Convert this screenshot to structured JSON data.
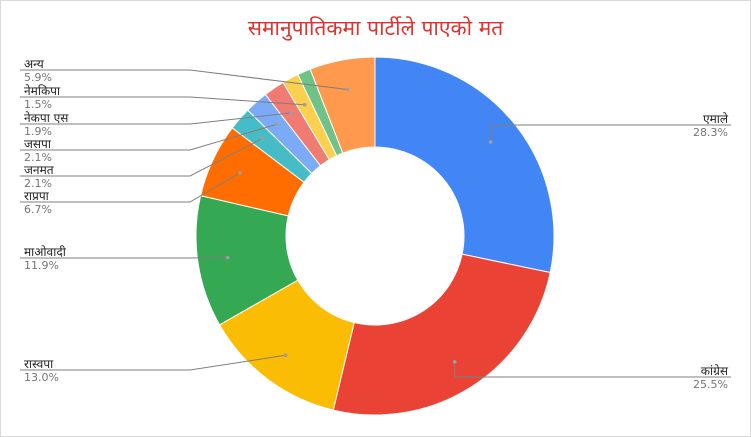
{
  "chart_data": {
    "type": "pie",
    "donut": true,
    "title": "समानुपातिकमा पार्टीले पाएको मत",
    "legend": "none",
    "slices": [
      {
        "label": "एमाले",
        "value": 28.3,
        "pct_text": "28.3%",
        "color": "#4285f4"
      },
      {
        "label": "कांग्रेस",
        "value": 25.5,
        "pct_text": "25.5%",
        "color": "#ea4335"
      },
      {
        "label": "रास्वपा",
        "value": 13.0,
        "pct_text": "13.0%",
        "color": "#fbbc04"
      },
      {
        "label": "माओवादी",
        "value": 11.9,
        "pct_text": "11.9%",
        "color": "#34a853"
      },
      {
        "label": "राप्रपा",
        "value": 6.7,
        "pct_text": "6.7%",
        "color": "#ff6d01"
      },
      {
        "label": "जनमत",
        "value": 2.1,
        "pct_text": "2.1%",
        "color": "#46bdc6"
      },
      {
        "label": "जसपा",
        "value": 2.1,
        "pct_text": "2.1%",
        "color": "#7baaf7"
      },
      {
        "label": "नेकपा एस",
        "value": 1.9,
        "pct_text": "1.9%",
        "color": "#f07b72"
      },
      {
        "label": "नेमकिपा",
        "value": 1.5,
        "pct_text": "1.5%",
        "color": "#fcd04f"
      },
      {
        "label": "",
        "value": 1.2,
        "pct_text": "",
        "color": "#71c287"
      },
      {
        "label": "अन्य",
        "value": 5.9,
        "pct_text": "5.9%",
        "color": "#ff994d"
      }
    ]
  }
}
